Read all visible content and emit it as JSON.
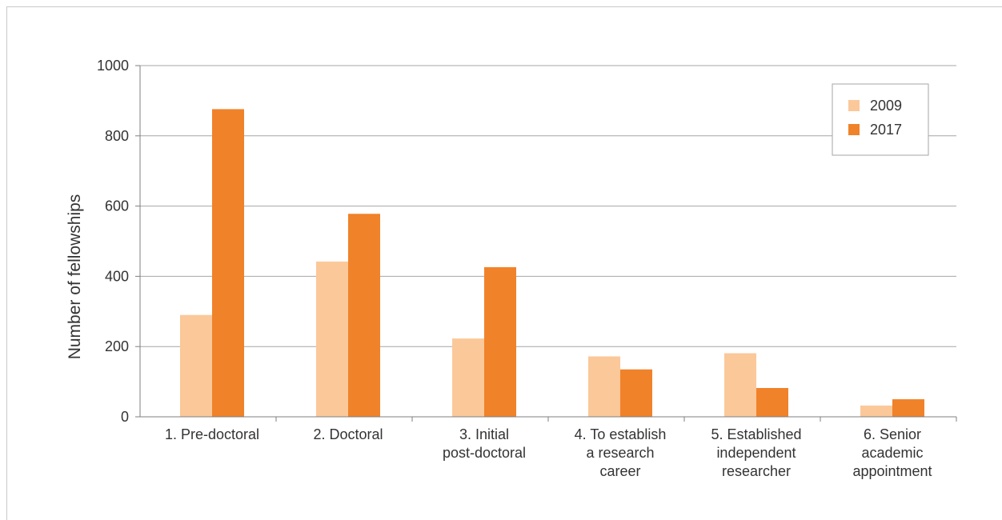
{
  "chart_data": {
    "type": "bar",
    "title": "",
    "xlabel": "",
    "ylabel": "Number of fellowships",
    "ylim": [
      0,
      1000
    ],
    "yticks": [
      0,
      200,
      400,
      600,
      800,
      1000
    ],
    "grid": true,
    "legend_position": "top-right",
    "categories": [
      [
        "1. Pre-doctoral"
      ],
      [
        "2. Doctoral"
      ],
      [
        "3. Initial",
        "post-doctoral"
      ],
      [
        "4. To establish",
        "a research",
        "career"
      ],
      [
        "5. Established",
        "independent",
        "researcher"
      ],
      [
        "6. Senior",
        "academic",
        "appointment"
      ]
    ],
    "series": [
      {
        "name": "2009",
        "color": "#fbc89a",
        "values": [
          290,
          442,
          223,
          172,
          181,
          32
        ]
      },
      {
        "name": "2017",
        "color": "#f0822a",
        "values": [
          876,
          578,
          426,
          135,
          82,
          50
        ]
      }
    ]
  }
}
